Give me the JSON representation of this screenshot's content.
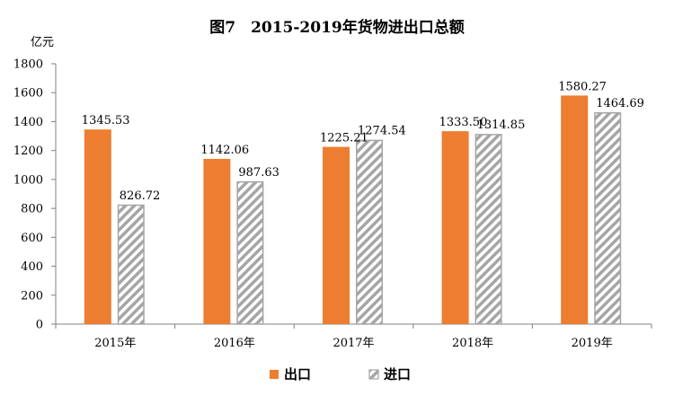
{
  "chart_data": {
    "type": "bar",
    "title": "图7　2015-2019年货物进出口总额",
    "ylabel": "亿元",
    "xlabel": "",
    "ylim": [
      0,
      1800
    ],
    "yticks": [
      0,
      200,
      400,
      600,
      800,
      1000,
      1200,
      1400,
      1600,
      1800
    ],
    "categories": [
      "2015年",
      "2016年",
      "2017年",
      "2018年",
      "2019年"
    ],
    "series": [
      {
        "name": "出口",
        "values": [
          1345.53,
          1142.06,
          1225.21,
          1333.5,
          1580.27
        ],
        "labels": [
          "1345.53",
          "1142.06",
          "1225.21",
          "1333.50",
          "1580.27"
        ],
        "color": "#ED7D31",
        "pattern": "solid"
      },
      {
        "name": "进口",
        "values": [
          826.72,
          987.63,
          1274.54,
          1314.85,
          1464.69
        ],
        "labels": [
          "826.72",
          "987.63",
          "1274.54",
          "1314.85",
          "1464.69"
        ],
        "color": "#A5A5A5",
        "pattern": "diagonal-hatch"
      }
    ],
    "grid": false,
    "legend_position": "bottom-center"
  }
}
